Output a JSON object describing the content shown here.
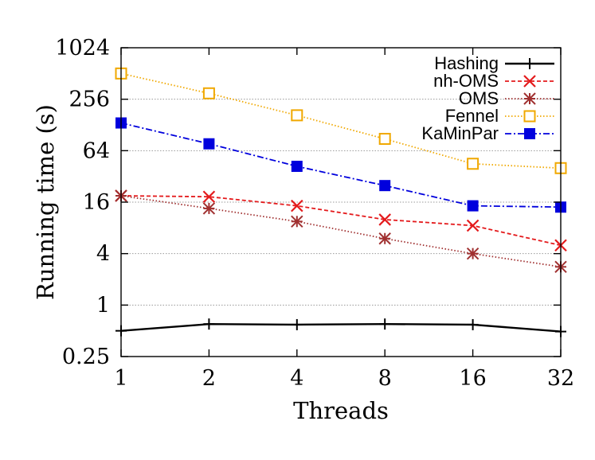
{
  "chart_data": {
    "type": "line",
    "title": "",
    "xlabel": "Threads",
    "ylabel": "Running time (s)",
    "x_scale": "log2",
    "y_scale": "log2",
    "categories": [
      "1",
      "2",
      "4",
      "8",
      "16",
      "32"
    ],
    "x": [
      1,
      2,
      4,
      8,
      16,
      32
    ],
    "xlim": [
      1,
      32
    ],
    "ylim": [
      0.25,
      1024
    ],
    "yticks": [
      0.25,
      1,
      4,
      16,
      64,
      256,
      1024
    ],
    "ytick_labels": [
      "0.25",
      "1",
      "4",
      "16",
      "64",
      "256",
      "1024"
    ],
    "grid": "horizontal dotted",
    "legend_position": "top-right",
    "series": [
      {
        "name": "Hashing",
        "color": "#000000",
        "line": "solid",
        "marker": "plus",
        "values": [
          0.5,
          0.6,
          0.59,
          0.6,
          0.59,
          0.49
        ]
      },
      {
        "name": "nh-OMS",
        "color": "#e41a1c",
        "line": "dashed",
        "marker": "x",
        "values": [
          19,
          18.5,
          14.5,
          10,
          8.5,
          5
        ]
      },
      {
        "name": "OMS",
        "color": "#a03030",
        "line": "dotted",
        "marker": "star",
        "values": [
          19,
          13.5,
          9.5,
          6,
          4,
          2.8
        ]
      },
      {
        "name": "Fennel",
        "color": "#f0a800",
        "line": "dotted",
        "marker": "square-open",
        "values": [
          512,
          300,
          166,
          88,
          45,
          40
        ]
      },
      {
        "name": "KaMinPar",
        "color": "#0000dd",
        "line": "dashdot",
        "marker": "square-filled",
        "values": [
          135,
          77,
          42,
          25,
          14.5,
          14
        ]
      }
    ]
  }
}
